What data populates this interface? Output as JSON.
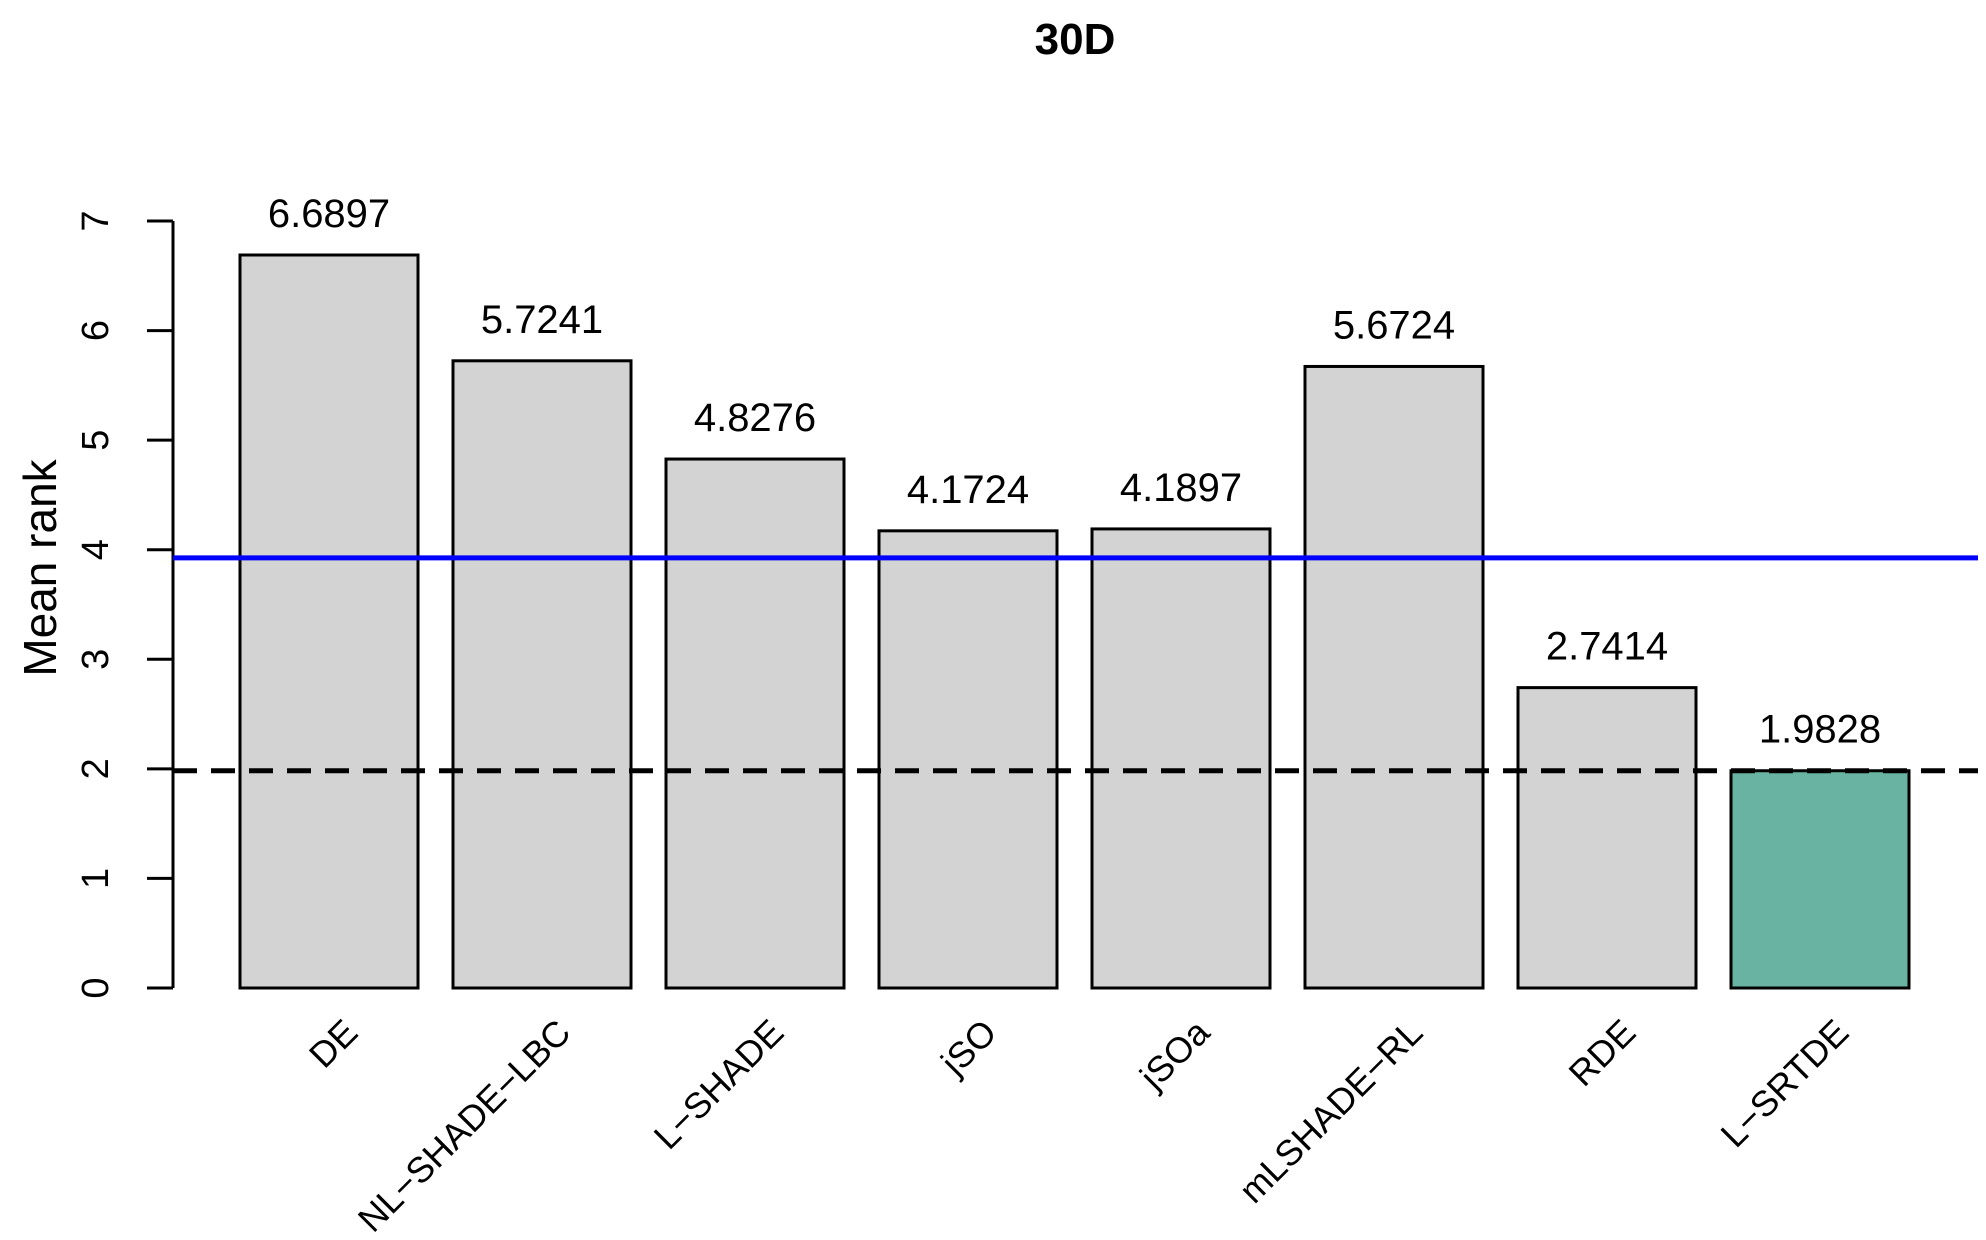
{
  "chart_data": {
    "type": "bar",
    "title": "30D",
    "xlabel": "",
    "ylabel": "Mean rank",
    "ylim": [
      0,
      7
    ],
    "yticks": [
      0,
      1,
      2,
      3,
      4,
      5,
      6,
      7
    ],
    "categories": [
      "DE",
      "NL−SHADE−LBC",
      "L−SHADE",
      "jSO",
      "jSOa",
      "mLSHADE−RL",
      "RDE",
      "L−SRTDE"
    ],
    "values": [
      6.6897,
      5.7241,
      4.8276,
      4.1724,
      4.1897,
      5.6724,
      2.7414,
      1.9828
    ],
    "value_labels": [
      "6.6897",
      "5.7241",
      "4.8276",
      "4.1724",
      "4.1897",
      "5.6724",
      "2.7414",
      "1.9828"
    ],
    "bar_colors": [
      "#d3d3d3",
      "#d3d3d3",
      "#d3d3d3",
      "#d3d3d3",
      "#d3d3d3",
      "#d3d3d3",
      "#d3d3d3",
      "#69b3a2"
    ],
    "reference_lines": [
      {
        "value": 3.9253,
        "style": "solid",
        "color": "#0000ff"
      },
      {
        "value": 1.9828,
        "style": "dashed",
        "color": "#000000"
      }
    ],
    "grid": false,
    "legend": "none"
  }
}
